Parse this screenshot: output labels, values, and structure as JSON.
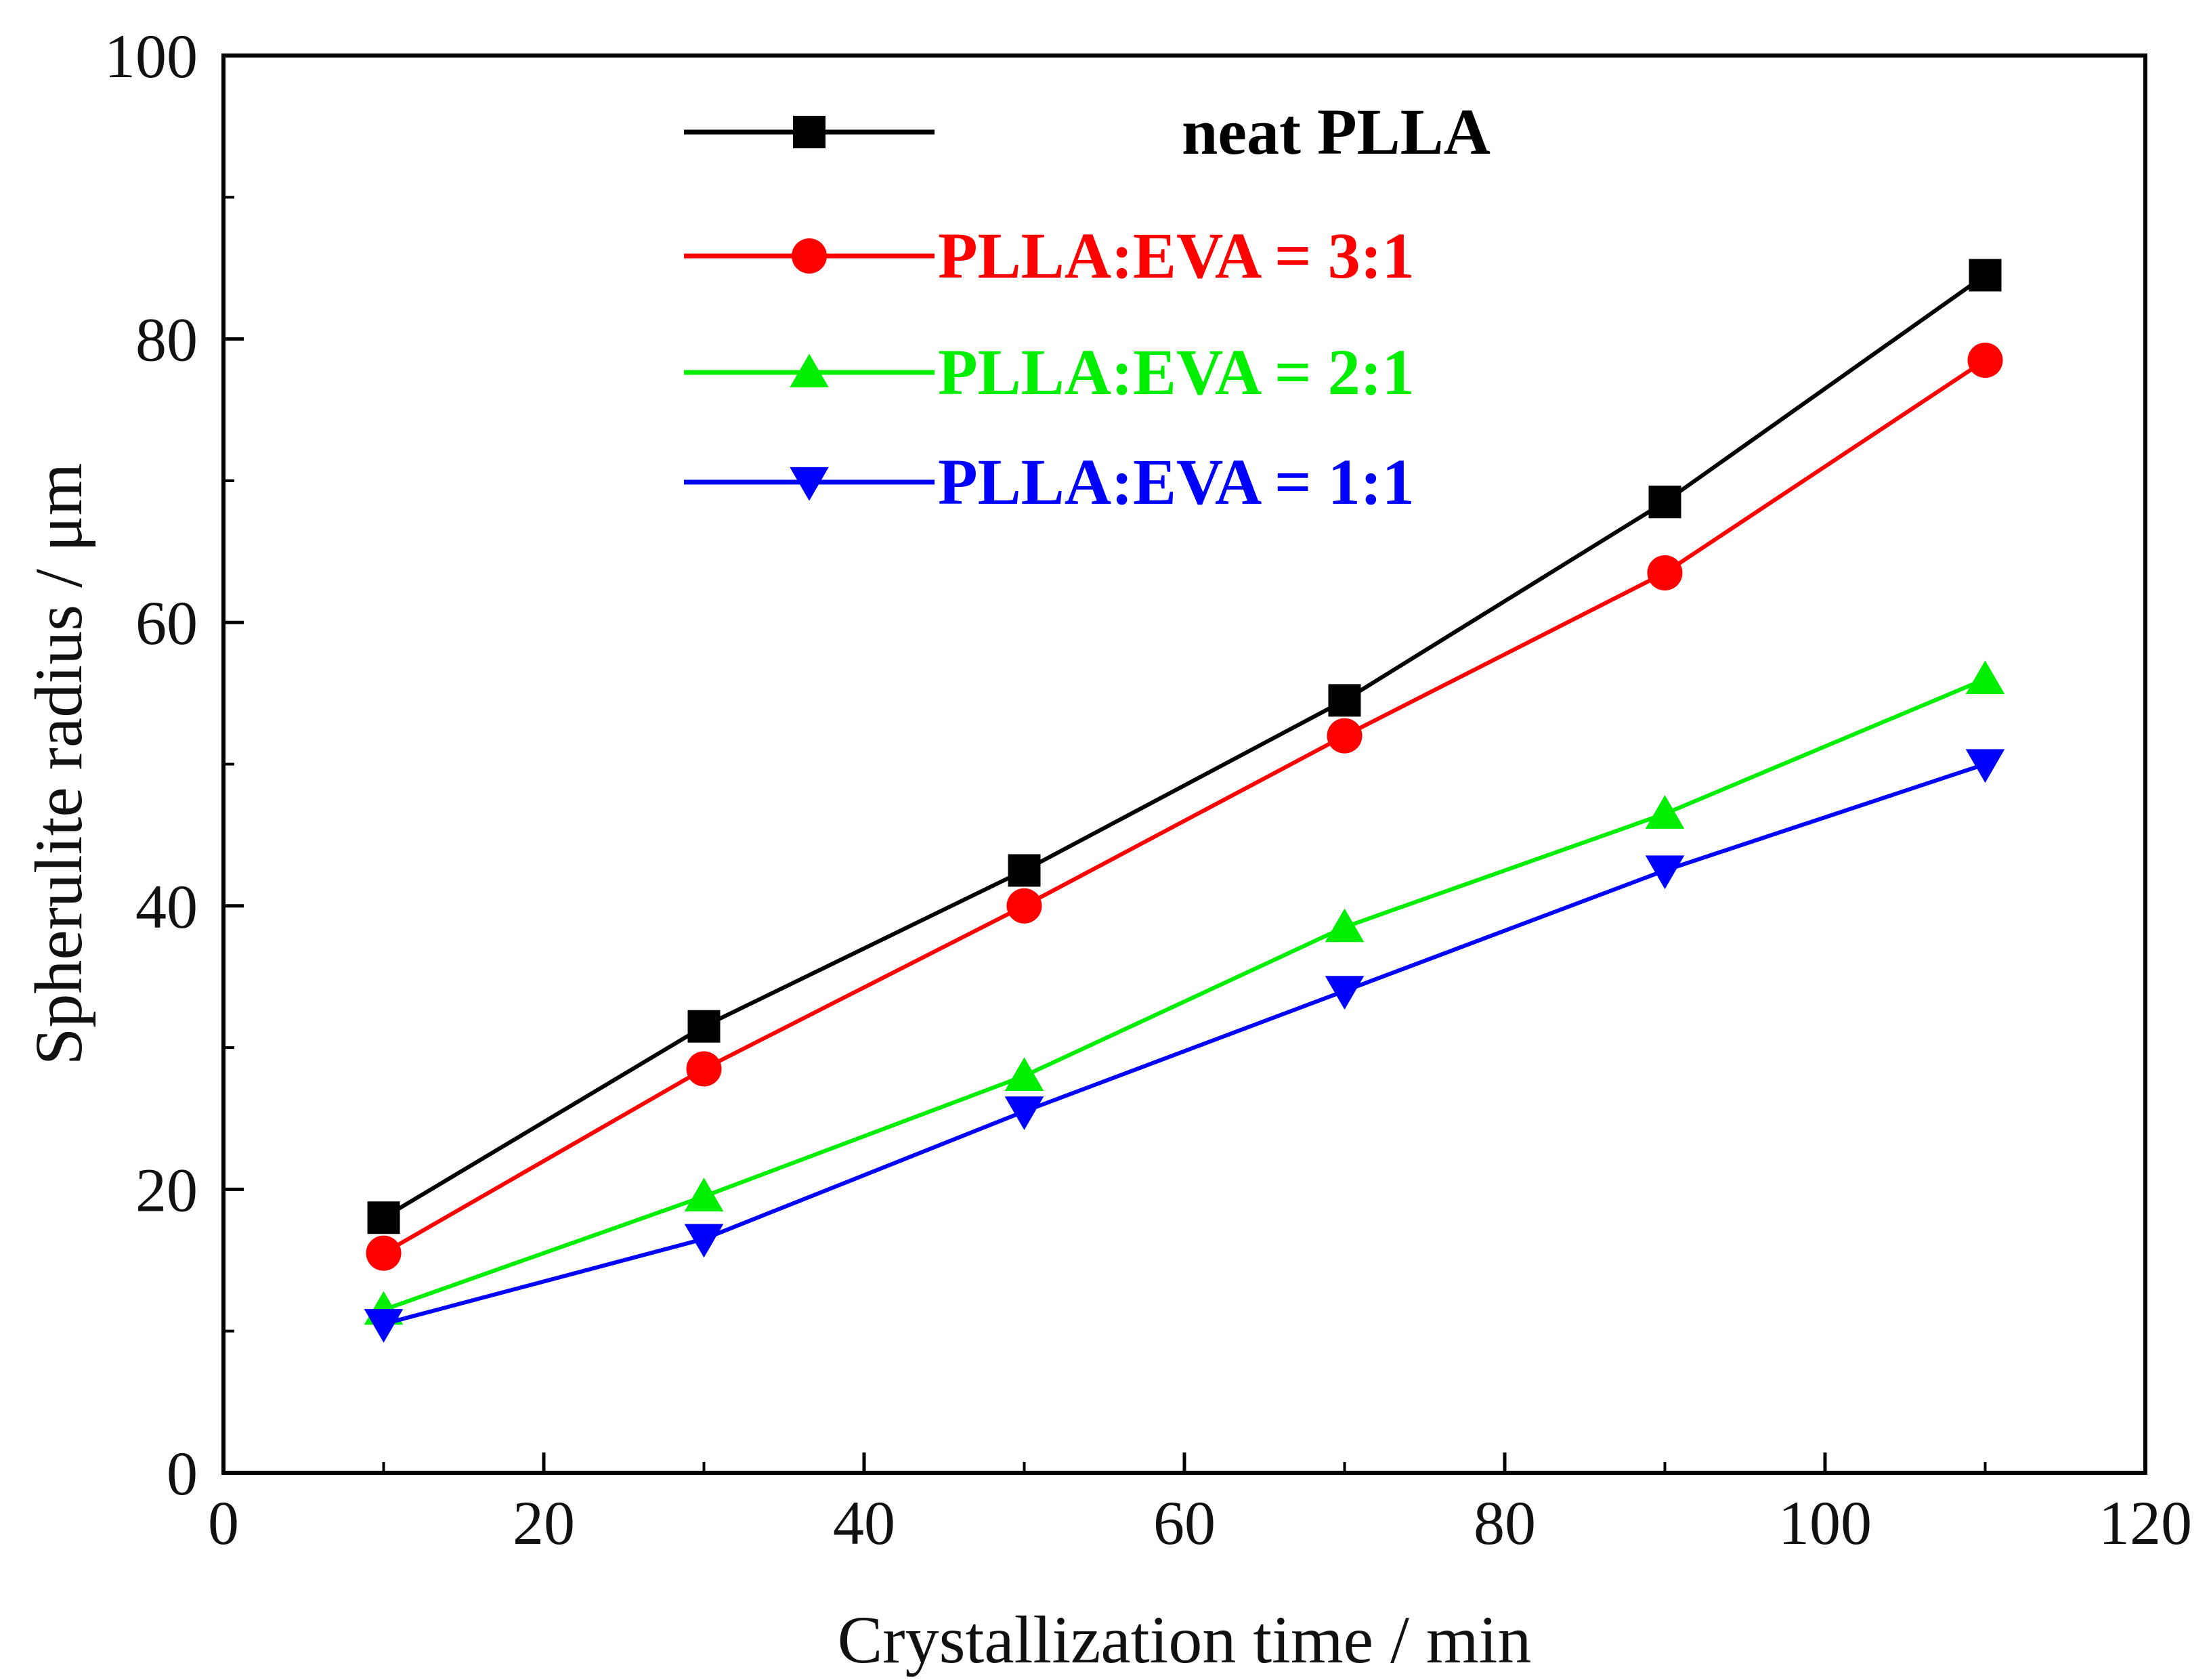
{
  "chart_data": {
    "type": "line",
    "title": "",
    "xlabel": "Crystallization time / min",
    "ylabel": "Spherulite radius / μm",
    "xlim": [
      0,
      120
    ],
    "ylim": [
      0,
      100
    ],
    "x_ticks": [
      0,
      20,
      40,
      60,
      80,
      100,
      120
    ],
    "y_ticks": [
      0,
      20,
      40,
      60,
      80,
      100
    ],
    "x_tick_labels": [
      "0",
      "20",
      "40",
      "60",
      "80",
      "100",
      "120"
    ],
    "y_tick_labels": [
      "0",
      "20",
      "40",
      "60",
      "80",
      "100"
    ],
    "grid": false,
    "legend_position": "top-center",
    "x": [
      10,
      30,
      50,
      70,
      90,
      110
    ],
    "series": [
      {
        "name": "neat PLLA",
        "color": "#000000",
        "marker": "square",
        "values": [
          18,
          31.5,
          42.5,
          54.5,
          68.5,
          84.5
        ]
      },
      {
        "name": "PLLA:EVA = 3:1",
        "color": "#ff0000",
        "marker": "circle",
        "values": [
          15.5,
          28.5,
          40,
          52,
          63.5,
          78.5
        ]
      },
      {
        "name": "PLLA:EVA = 2:1",
        "color": "#00ee00",
        "marker": "triangle-up",
        "values": [
          11.5,
          19.5,
          28,
          38.5,
          46.5,
          56
        ]
      },
      {
        "name": "PLLA:EVA = 1:1",
        "color": "#0000ff",
        "marker": "triangle-down",
        "values": [
          10.5,
          16.5,
          25.5,
          34,
          42.5,
          50
        ]
      }
    ]
  }
}
